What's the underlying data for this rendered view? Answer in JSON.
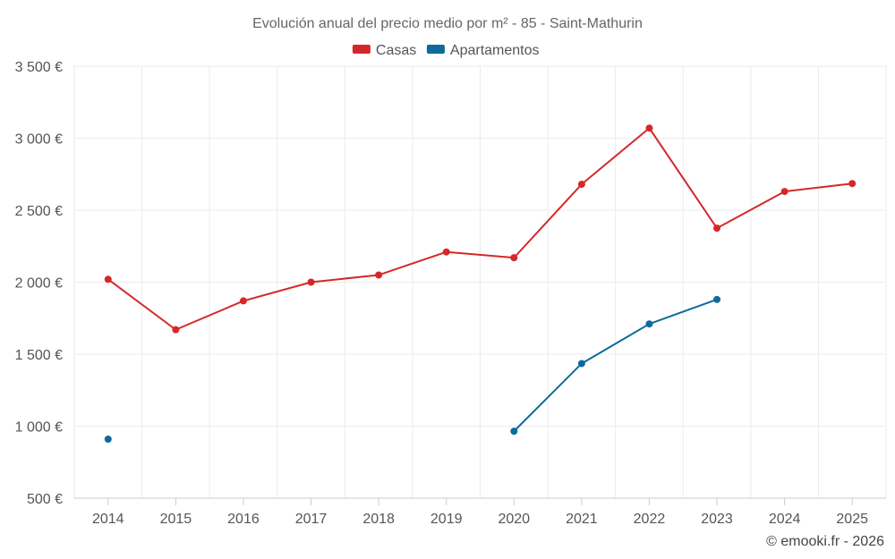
{
  "chart_data": {
    "type": "line",
    "title": "Evolución anual del precio medio por m² - 85 - Saint-Mathurin",
    "categories": [
      "2014",
      "2015",
      "2016",
      "2017",
      "2018",
      "2019",
      "2020",
      "2021",
      "2022",
      "2023",
      "2024",
      "2025"
    ],
    "series": [
      {
        "name": "Casas",
        "color": "#d62728",
        "values": [
          2020,
          1670,
          1870,
          2000,
          2050,
          2210,
          2170,
          2680,
          3070,
          2375,
          2630,
          2685
        ]
      },
      {
        "name": "Apartamentos",
        "color": "#0e6a9c",
        "values": [
          910,
          null,
          null,
          null,
          null,
          null,
          965,
          1435,
          1710,
          1880,
          null,
          null
        ]
      }
    ],
    "ylim": [
      500,
      3500
    ],
    "yticks": [
      500,
      1000,
      1500,
      2000,
      2500,
      3000,
      3500
    ],
    "ytick_labels": [
      "500 €",
      "1 000 €",
      "1 500 €",
      "2 000 €",
      "2 500 €",
      "3 000 €",
      "3 500 €"
    ],
    "grid": true,
    "legend": "top-center",
    "credit": "© emooki.fr - 2026"
  }
}
